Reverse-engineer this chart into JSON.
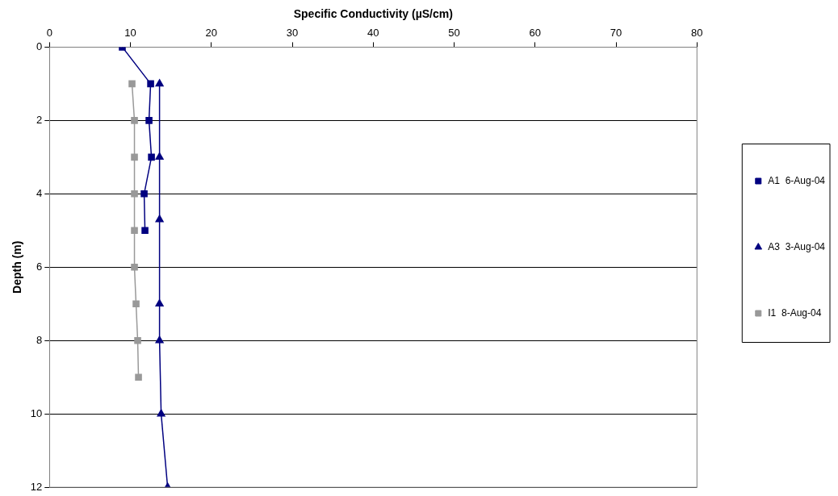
{
  "chart_data": {
    "type": "line",
    "xlabel": "Specific Conductivity (µS/cm)",
    "ylabel": "Depth (m)",
    "xlim": [
      0,
      80
    ],
    "xticks": [
      0,
      10,
      20,
      30,
      40,
      50,
      60,
      70,
      80
    ],
    "ylim": [
      12,
      0
    ],
    "yticks": [
      0,
      2,
      4,
      6,
      8,
      10,
      12
    ],
    "grid": "y",
    "legend": "right",
    "line_style": "solid",
    "series": [
      {
        "name": "A1  6-Aug-04",
        "color": "#000080",
        "marker": "square",
        "x": [
          9.0,
          12.5,
          12.3,
          12.6,
          11.7,
          11.8
        ],
        "values": [
          0,
          1,
          2,
          3,
          4,
          5
        ]
      },
      {
        "name": "A3  3-Aug-04",
        "color": "#000080",
        "marker": "triangle",
        "x": [
          13.6,
          13.6,
          13.6,
          13.6,
          13.6,
          13.8,
          14.6
        ],
        "values": [
          1,
          3,
          4.7,
          7,
          8,
          10,
          12
        ]
      },
      {
        "name": "I1  8-Aug-04",
        "color": "#999999",
        "marker": "square",
        "x": [
          10.2,
          10.5,
          10.5,
          10.5,
          10.5,
          10.5,
          10.7,
          10.9,
          11.0
        ],
        "values": [
          1,
          2,
          3,
          4,
          5,
          6,
          7,
          8,
          9
        ]
      }
    ]
  }
}
